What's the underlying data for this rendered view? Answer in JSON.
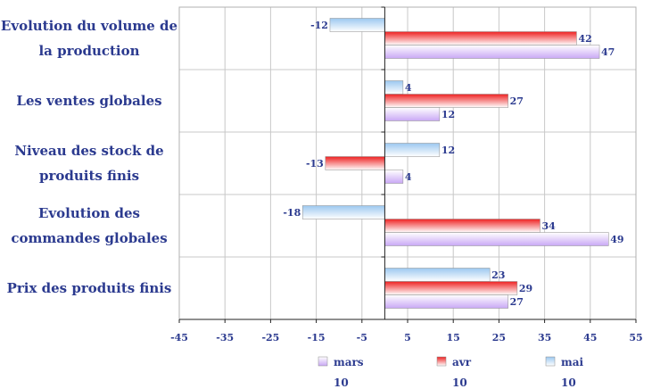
{
  "chart_data": {
    "type": "bar",
    "orientation": "horizontal",
    "categories": [
      [
        "Evolution du volume de",
        "la production"
      ],
      [
        "Les ventes globales"
      ],
      [
        "Niveau des stock de",
        "produits finis"
      ],
      [
        "Evolution des",
        "commandes globales"
      ],
      [
        "Prix des produits finis"
      ]
    ],
    "series": [
      {
        "name": "mars 10",
        "name_lines": [
          "mars",
          "10"
        ],
        "color": "#c9a8f5",
        "values": [
          47,
          12,
          4,
          49,
          27
        ]
      },
      {
        "name": "avr 10",
        "name_lines": [
          "avr",
          "10"
        ],
        "color": "#ee2222",
        "values": [
          42,
          27,
          -13,
          34,
          29
        ]
      },
      {
        "name": "mai 10",
        "name_lines": [
          "mai",
          "10"
        ],
        "color": "#9cc8f0",
        "values": [
          -12,
          4,
          12,
          -18,
          23
        ]
      }
    ],
    "xlim": [
      -45,
      55
    ],
    "xticks": [
      -45,
      -35,
      -25,
      -15,
      -5,
      5,
      15,
      25,
      35,
      45,
      55
    ],
    "grid": true,
    "legend": "bottom",
    "title": "",
    "xlabel": "",
    "ylabel": ""
  }
}
